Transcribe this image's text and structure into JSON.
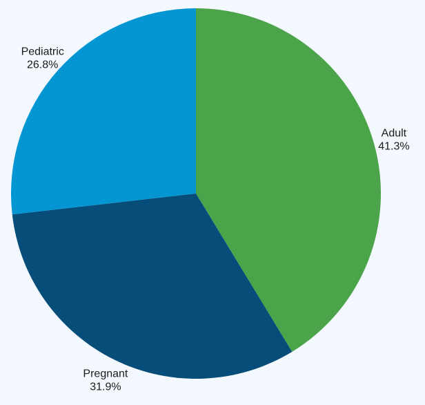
{
  "chart_data": {
    "type": "pie",
    "start_angle_deg": 0,
    "direction": "clockwise",
    "slices": [
      {
        "label": "Adult",
        "value": 41.3,
        "percent_label": "41.3%",
        "color": "#4ba34a"
      },
      {
        "label": "Pregnant",
        "value": 31.9,
        "percent_label": "31.9%",
        "color": "#064d7a"
      },
      {
        "label": "Pediatric",
        "value": 26.8,
        "percent_label": "26.8%",
        "color": "#0495d3"
      }
    ]
  }
}
